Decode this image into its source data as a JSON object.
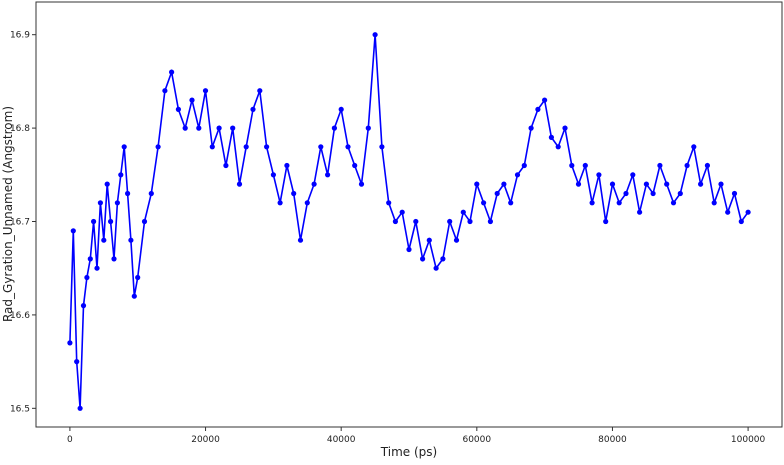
{
  "chart_data": {
    "type": "line",
    "xlabel": "Time (ps)",
    "ylabel": "Rad_Gyration_Unnamed (Angstrom)",
    "xlim": [
      -5000,
      105000
    ],
    "ylim": [
      16.48,
      16.935
    ],
    "x_ticks": [
      0,
      20000,
      40000,
      60000,
      80000,
      100000
    ],
    "y_ticks": [
      16.5,
      16.6,
      16.7,
      16.8,
      16.9
    ],
    "x_tick_labels": [
      "0",
      "20000",
      "40000",
      "60000",
      "80000",
      "100000"
    ],
    "y_tick_labels": [
      "16.5",
      "16.6",
      "16.7",
      "16.8",
      "16.9"
    ],
    "grid": false,
    "series": [
      {
        "color": "#0000ff",
        "marker": "circle",
        "x": [
          0,
          500,
          1000,
          1500,
          2000,
          2500,
          3000,
          3500,
          4000,
          4500,
          5000,
          5500,
          6000,
          6500,
          7000,
          7500,
          8000,
          8500,
          9000,
          9500,
          10000,
          11000,
          12000,
          13000,
          14000,
          15000,
          16000,
          17000,
          18000,
          19000,
          20000,
          21000,
          22000,
          23000,
          24000,
          25000,
          26000,
          27000,
          28000,
          29000,
          30000,
          31000,
          32000,
          33000,
          34000,
          35000,
          36000,
          37000,
          38000,
          39000,
          40000,
          41000,
          42000,
          43000,
          44000,
          45000,
          46000,
          47000,
          48000,
          49000,
          50000,
          51000,
          52000,
          53000,
          54000,
          55000,
          56000,
          57000,
          58000,
          59000,
          60000,
          61000,
          62000,
          63000,
          64000,
          65000,
          66000,
          67000,
          68000,
          69000,
          70000,
          71000,
          72000,
          73000,
          74000,
          75000,
          76000,
          77000,
          78000,
          79000,
          80000,
          81000,
          82000,
          83000,
          84000,
          85000,
          86000,
          87000,
          88000,
          89000,
          90000,
          91000,
          92000,
          93000,
          94000,
          95000,
          96000,
          97000,
          98000,
          99000,
          100000
        ],
        "y": [
          16.57,
          16.69,
          16.55,
          16.5,
          16.61,
          16.64,
          16.66,
          16.7,
          16.65,
          16.72,
          16.68,
          16.74,
          16.7,
          16.66,
          16.72,
          16.75,
          16.78,
          16.73,
          16.68,
          16.62,
          16.64,
          16.7,
          16.73,
          16.78,
          16.84,
          16.86,
          16.82,
          16.8,
          16.83,
          16.8,
          16.84,
          16.78,
          16.8,
          16.76,
          16.8,
          16.74,
          16.78,
          16.82,
          16.84,
          16.78,
          16.75,
          16.72,
          16.76,
          16.73,
          16.68,
          16.72,
          16.74,
          16.78,
          16.75,
          16.8,
          16.82,
          16.78,
          16.76,
          16.74,
          16.8,
          16.9,
          16.78,
          16.72,
          16.7,
          16.71,
          16.67,
          16.7,
          16.66,
          16.68,
          16.65,
          16.66,
          16.7,
          16.68,
          16.71,
          16.7,
          16.74,
          16.72,
          16.7,
          16.73,
          16.74,
          16.72,
          16.75,
          16.76,
          16.8,
          16.82,
          16.83,
          16.79,
          16.78,
          16.8,
          16.76,
          16.74,
          16.76,
          16.72,
          16.75,
          16.7,
          16.74,
          16.72,
          16.73,
          16.75,
          16.71,
          16.74,
          16.73,
          16.76,
          16.74,
          16.72,
          16.73,
          16.76,
          16.78,
          16.74,
          16.76,
          16.72,
          16.74,
          16.71,
          16.73,
          16.7,
          16.71
        ]
      }
    ]
  }
}
